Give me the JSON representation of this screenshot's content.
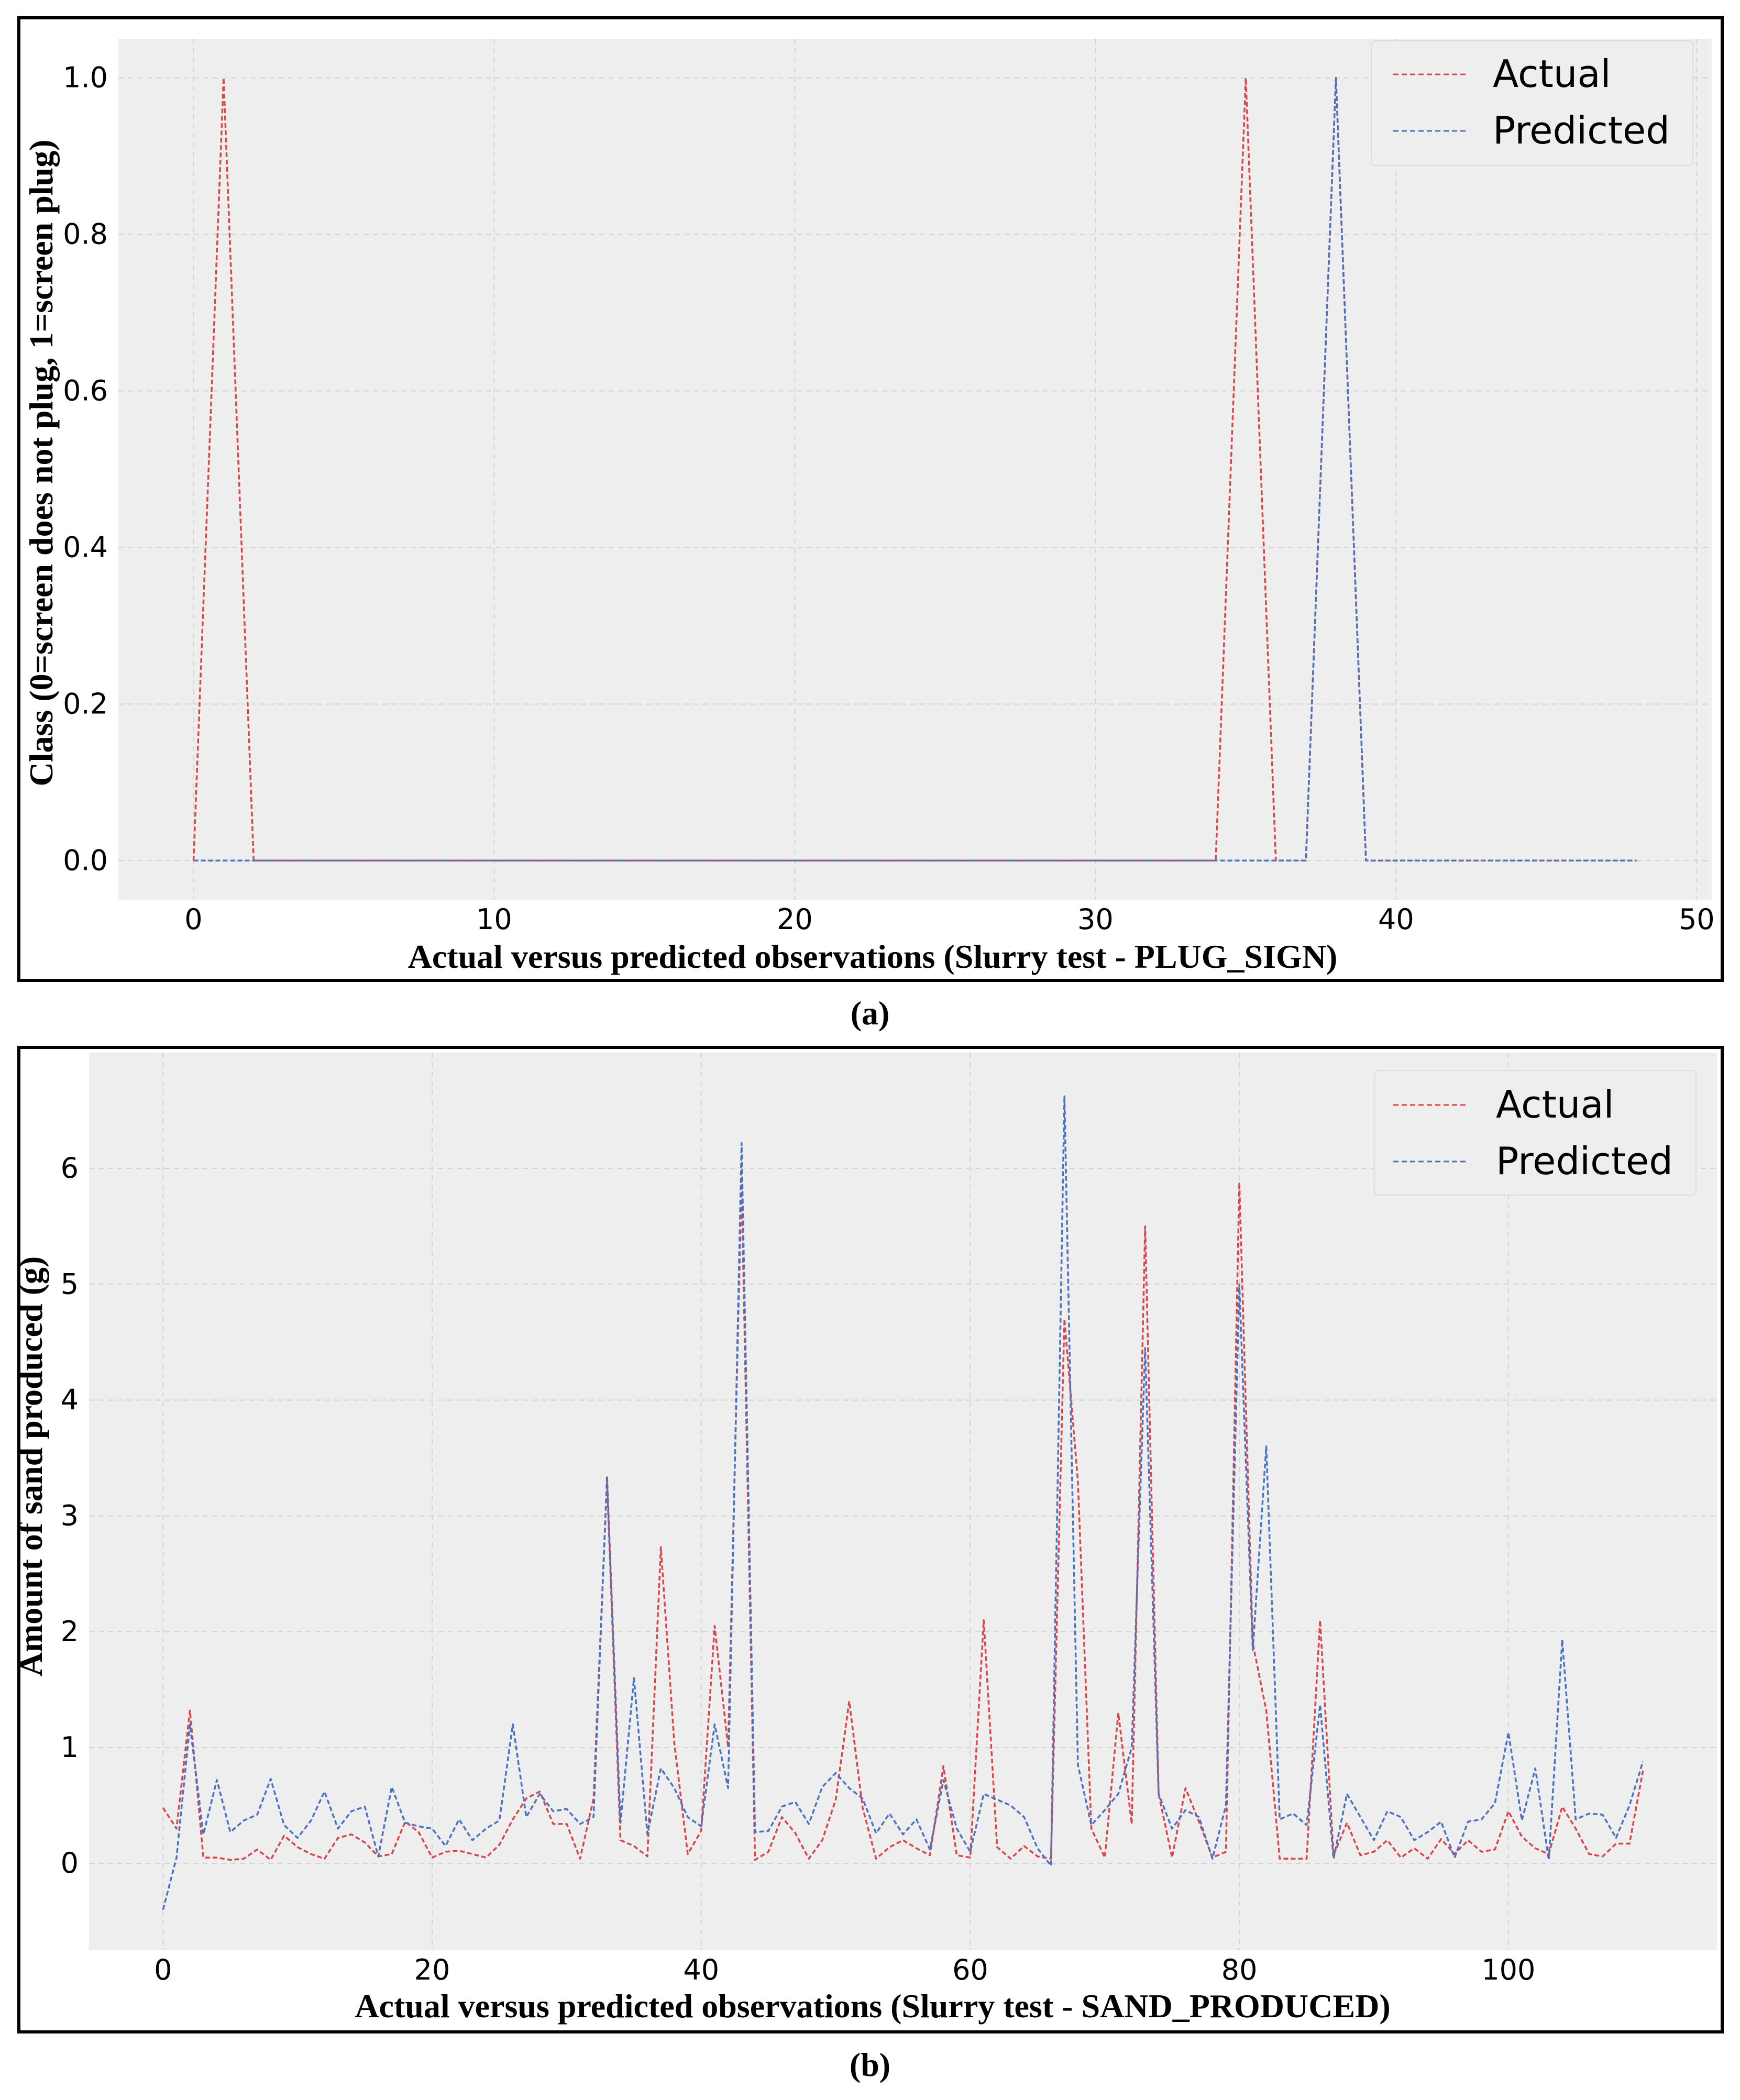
{
  "charts": [
    {
      "panel_label": "(a)",
      "chart_data": {
        "type": "line",
        "title": "",
        "xlabel": "Actual versus predicted observations (Slurry test - PLUG_SIGN)",
        "ylabel": "Class (0=screen does not plug, 1=screen plug)",
        "xlim": [
          -2.5,
          50.5
        ],
        "ylim": [
          -0.05,
          1.05
        ],
        "x_ticks": [
          0,
          10,
          20,
          30,
          40,
          50
        ],
        "y_ticks": [
          0.0,
          0.2,
          0.4,
          0.6,
          0.8,
          1.0
        ],
        "x_tick_labels": [
          "0",
          "10",
          "20",
          "30",
          "40",
          "50"
        ],
        "y_tick_labels": [
          "0.0",
          "0.2",
          "0.4",
          "0.6",
          "0.8",
          "1.0"
        ],
        "grid": true,
        "legend_position": "top-right",
        "series": [
          {
            "name": "Actual",
            "color": "#d9454a",
            "x": [
              0,
              1,
              2,
              3,
              4,
              5,
              6,
              7,
              8,
              9,
              10,
              11,
              12,
              13,
              14,
              15,
              16,
              17,
              18,
              19,
              20,
              21,
              22,
              23,
              24,
              25,
              26,
              27,
              28,
              29,
              30,
              31,
              32,
              33,
              34,
              35,
              36,
              37,
              38,
              39,
              40,
              41,
              42,
              43,
              44,
              45,
              46,
              47,
              48
            ],
            "values": [
              0,
              1,
              0,
              0,
              0,
              0,
              0,
              0,
              0,
              0,
              0,
              0,
              0,
              0,
              0,
              0,
              0,
              0,
              0,
              0,
              0,
              0,
              0,
              0,
              0,
              0,
              0,
              0,
              0,
              0,
              0,
              0,
              0,
              0,
              0,
              1,
              0,
              0,
              1,
              0,
              0,
              0,
              0,
              0,
              0,
              0,
              0,
              0,
              0
            ]
          },
          {
            "name": "Predicted",
            "color": "#4a72c2",
            "x": [
              0,
              1,
              2,
              3,
              4,
              5,
              6,
              7,
              8,
              9,
              10,
              11,
              12,
              13,
              14,
              15,
              16,
              17,
              18,
              19,
              20,
              21,
              22,
              23,
              24,
              25,
              26,
              27,
              28,
              29,
              30,
              31,
              32,
              33,
              34,
              35,
              36,
              37,
              38,
              39,
              40,
              41,
              42,
              43,
              44,
              45,
              46,
              47,
              48
            ],
            "values": [
              0,
              0,
              0,
              0,
              0,
              0,
              0,
              0,
              0,
              0,
              0,
              0,
              0,
              0,
              0,
              0,
              0,
              0,
              0,
              0,
              0,
              0,
              0,
              0,
              0,
              0,
              0,
              0,
              0,
              0,
              0,
              0,
              0,
              0,
              0,
              0,
              0,
              0,
              1,
              0,
              0,
              0,
              0,
              0,
              0,
              0,
              0,
              0,
              0
            ]
          }
        ]
      }
    },
    {
      "panel_label": "(b)",
      "chart_data": {
        "type": "line",
        "title": "",
        "xlabel": "Actual versus predicted observations (Slurry test - SAND_PRODUCED)",
        "ylabel": "Amount of sand produced (g)",
        "xlim": [
          -5.5,
          115.5
        ],
        "ylim": [
          -0.75,
          7.0
        ],
        "x_ticks": [
          0,
          20,
          40,
          60,
          80,
          100
        ],
        "y_ticks": [
          0,
          1,
          2,
          3,
          4,
          5,
          6
        ],
        "x_tick_labels": [
          "0",
          "20",
          "40",
          "60",
          "80",
          "100"
        ],
        "y_tick_labels": [
          "0",
          "1",
          "2",
          "3",
          "4",
          "5",
          "6"
        ],
        "grid": true,
        "legend_position": "top-right",
        "series": [
          {
            "name": "Actual",
            "color": "#d9454a",
            "x": [
              0,
              1,
              2,
              3,
              4,
              5,
              6,
              7,
              8,
              9,
              10,
              11,
              12,
              13,
              14,
              15,
              16,
              17,
              18,
              19,
              20,
              21,
              22,
              23,
              24,
              25,
              26,
              27,
              28,
              29,
              30,
              31,
              32,
              33,
              34,
              35,
              36,
              37,
              38,
              39,
              40,
              41,
              42,
              43,
              44,
              45,
              46,
              47,
              48,
              49,
              50,
              51,
              52,
              53,
              54,
              55,
              56,
              57,
              58,
              59,
              60,
              61,
              62,
              63,
              64,
              65,
              66,
              67,
              68,
              69,
              70,
              71,
              72,
              73,
              74,
              75,
              76,
              77,
              78,
              79,
              80,
              81,
              82,
              83,
              84,
              85,
              86,
              87,
              88,
              89,
              90,
              91,
              92,
              93,
              94,
              95,
              96,
              97,
              98,
              99,
              100,
              101,
              102,
              103,
              104,
              105,
              106,
              107,
              108,
              109,
              110
            ],
            "values": [
              0.48,
              0.3,
              1.32,
              0.05,
              0.05,
              0.03,
              0.04,
              0.12,
              0.03,
              0.24,
              0.14,
              0.08,
              0.04,
              0.22,
              0.25,
              0.18,
              0.06,
              0.08,
              0.36,
              0.27,
              0.05,
              0.1,
              0.11,
              0.08,
              0.05,
              0.16,
              0.38,
              0.56,
              0.62,
              0.34,
              0.34,
              0.04,
              0.56,
              3.3,
              0.2,
              0.15,
              0.06,
              2.73,
              1.04,
              0.08,
              0.28,
              2.05,
              1.0,
              5.9,
              0.03,
              0.1,
              0.4,
              0.26,
              0.04,
              0.2,
              0.55,
              1.4,
              0.48,
              0.04,
              0.14,
              0.2,
              0.13,
              0.07,
              0.84,
              0.07,
              0.05,
              2.1,
              0.14,
              0.04,
              0.15,
              0.06,
              0.04,
              4.7,
              3.3,
              0.3,
              0.05,
              1.3,
              0.34,
              5.5,
              0.6,
              0.05,
              0.65,
              0.36,
              0.05,
              0.1,
              5.88,
              1.9,
              1.32,
              0.04,
              0.04,
              0.04,
              2.1,
              0.07,
              0.35,
              0.07,
              0.1,
              0.2,
              0.05,
              0.13,
              0.04,
              0.21,
              0.08,
              0.2,
              0.1,
              0.12,
              0.45,
              0.23,
              0.13,
              0.08,
              0.49,
              0.3,
              0.08,
              0.06,
              0.17,
              0.17,
              0.8
            ]
          },
          {
            "name": "Predicted",
            "color": "#4a72c2",
            "x": [
              0,
              1,
              2,
              3,
              4,
              5,
              6,
              7,
              8,
              9,
              10,
              11,
              12,
              13,
              14,
              15,
              16,
              17,
              18,
              19,
              20,
              21,
              22,
              23,
              24,
              25,
              26,
              27,
              28,
              29,
              30,
              31,
              32,
              33,
              34,
              35,
              36,
              37,
              38,
              39,
              40,
              41,
              42,
              43,
              44,
              45,
              46,
              47,
              48,
              49,
              50,
              51,
              52,
              53,
              54,
              55,
              56,
              57,
              58,
              59,
              60,
              61,
              62,
              63,
              64,
              65,
              66,
              67,
              68,
              69,
              70,
              71,
              72,
              73,
              74,
              75,
              76,
              77,
              78,
              79,
              80,
              81,
              82,
              83,
              84,
              85,
              86,
              87,
              88,
              89,
              90,
              91,
              92,
              93,
              94,
              95,
              96,
              97,
              98,
              99,
              100,
              101,
              102,
              103,
              104,
              105,
              106,
              107,
              108,
              109,
              110
            ],
            "values": [
              -0.4,
              0.05,
              1.2,
              0.25,
              0.72,
              0.27,
              0.37,
              0.42,
              0.73,
              0.33,
              0.22,
              0.37,
              0.62,
              0.3,
              0.45,
              0.49,
              0.06,
              0.66,
              0.35,
              0.32,
              0.3,
              0.15,
              0.38,
              0.2,
              0.3,
              0.37,
              1.2,
              0.4,
              0.6,
              0.45,
              0.47,
              0.34,
              0.4,
              3.35,
              0.35,
              1.6,
              0.25,
              0.82,
              0.65,
              0.4,
              0.32,
              1.2,
              0.65,
              6.22,
              0.27,
              0.28,
              0.49,
              0.53,
              0.34,
              0.66,
              0.78,
              0.65,
              0.56,
              0.26,
              0.43,
              0.25,
              0.38,
              0.12,
              0.72,
              0.3,
              0.1,
              0.6,
              0.55,
              0.5,
              0.4,
              0.13,
              -0.02,
              6.63,
              0.85,
              0.33,
              0.46,
              0.6,
              1.0,
              4.45,
              0.6,
              0.3,
              0.46,
              0.4,
              0.04,
              0.5,
              5.0,
              1.84,
              3.6,
              0.38,
              0.43,
              0.33,
              1.37,
              0.04,
              0.6,
              0.4,
              0.2,
              0.45,
              0.4,
              0.2,
              0.27,
              0.36,
              0.05,
              0.36,
              0.38,
              0.52,
              1.13,
              0.37,
              0.82,
              0.03,
              1.93,
              0.38,
              0.43,
              0.42,
              0.22,
              0.5,
              0.88
            ]
          }
        ]
      }
    }
  ]
}
